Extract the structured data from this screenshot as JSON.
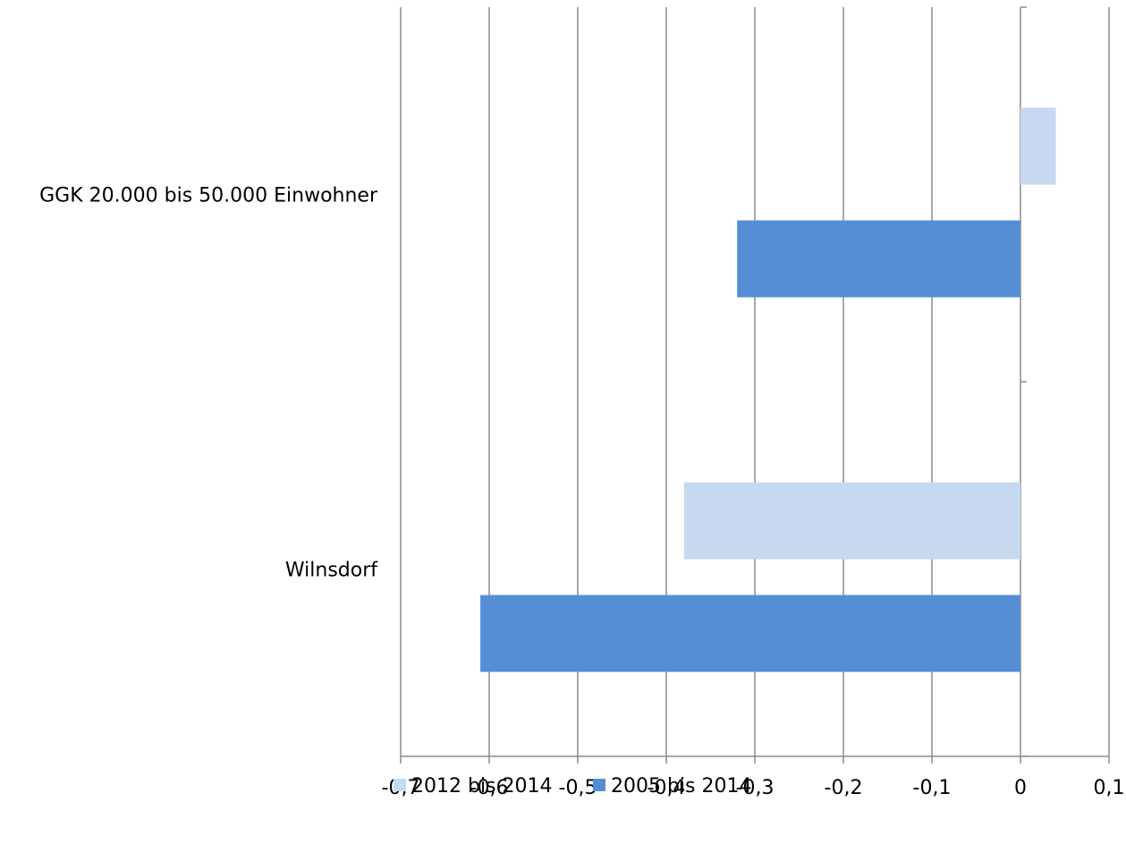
{
  "chart_data": {
    "type": "bar",
    "orientation": "horizontal",
    "title": "",
    "xlabel": "",
    "ylabel": "",
    "categories": [
      "GGK 20.000 bis 50.000 Einwohner",
      "Wilnsdorf"
    ],
    "series": [
      {
        "name": "2012 bis 2014",
        "color": "#c6d9f1",
        "values": [
          0.04,
          -0.38
        ]
      },
      {
        "name": "2005 bis 2014",
        "color": "#558ed5",
        "values": [
          -0.32,
          -0.61
        ]
      }
    ],
    "xlim": [
      -0.7,
      0.1
    ],
    "xticks": [
      -0.7,
      -0.6,
      -0.5,
      -0.4,
      -0.3,
      -0.2,
      -0.1,
      0,
      0.1
    ],
    "xtick_labels": [
      "-0,7",
      "-0,6",
      "-0,5",
      "-0,4",
      "-0,3",
      "-0,2",
      "-0,1",
      "0",
      "0,1"
    ],
    "grid": "vertical",
    "legend": "bottom"
  }
}
